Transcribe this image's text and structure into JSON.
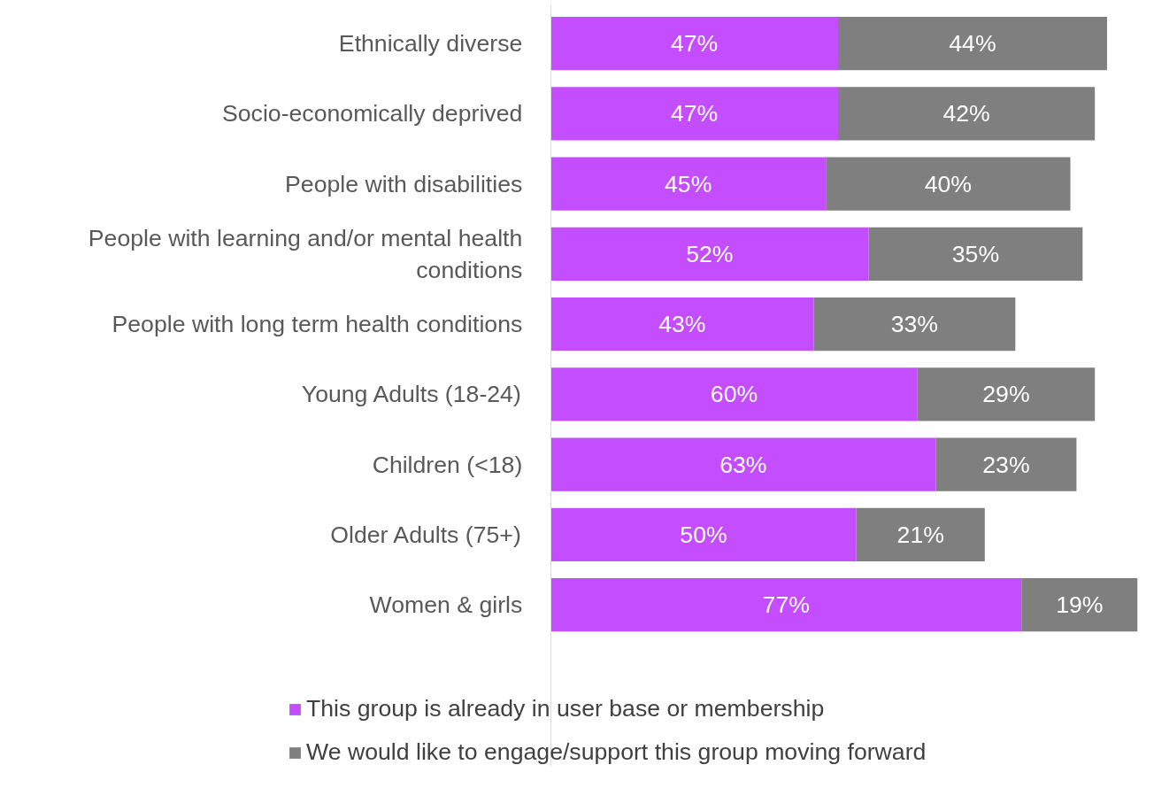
{
  "chart_data": {
    "type": "bar",
    "orientation": "horizontal",
    "stacked": true,
    "legend": "bottom",
    "categories": [
      "Ethnically diverse",
      "Socio-economically deprived",
      "People with disabilities",
      "People with learning and/or mental health conditions",
      "People with long term health conditions",
      "Young Adults (18-24)",
      "Children (<18)",
      "Older Adults (75+)",
      "Women & girls"
    ],
    "series": [
      {
        "name": "This group is already in user base or membership",
        "color": "#c44dff",
        "values": [
          47,
          47,
          45,
          52,
          43,
          60,
          63,
          50,
          77
        ],
        "value_labels": [
          "47%",
          "47%",
          "45%",
          "52%",
          "43%",
          "60%",
          "63%",
          "50%",
          "77%"
        ]
      },
      {
        "name": "We would like to engage/support this group moving forward",
        "color": "#7f7f7f",
        "values": [
          44,
          42,
          40,
          35,
          33,
          29,
          23,
          21,
          19
        ],
        "value_labels": [
          "44%",
          "42%",
          "40%",
          "35%",
          "33%",
          "29%",
          "23%",
          "21%",
          "19%"
        ]
      }
    ]
  }
}
